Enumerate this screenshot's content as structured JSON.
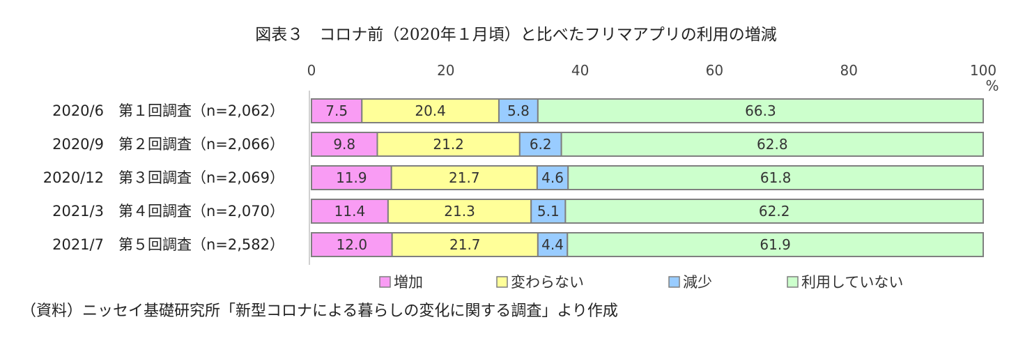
{
  "title": "図表３　コロナ前（2020年１月頃）と比べたフリマアプリの利用の増減",
  "source_note": "（資料）ニッセイ基礎研究所「新型コロナによる暮らしの変化に関する調査」より作成",
  "colors": {
    "increase": "#F99CF4",
    "unchanged": "#FFFF99",
    "decrease": "#99CCFF",
    "not_using": "#CCFFCC",
    "bar_border": "#7f7f7f"
  },
  "chart_data": {
    "type": "bar",
    "orientation": "horizontal",
    "stacked": true,
    "categories": [
      "2020/6　第１回調査（n=2,062）",
      "2020/9　第２回調査（n=2,066）",
      "2020/12　第３回調査（n=2,069）",
      "2021/3　第４回調査（n=2,070）",
      "2021/7　第５回調査（n=2,582）"
    ],
    "series": [
      {
        "name": "増加",
        "values": [
          7.5,
          9.8,
          11.9,
          11.4,
          12.0
        ],
        "labels": [
          "7.5",
          "9.8",
          "11.9",
          "11.4",
          "12.0"
        ],
        "color": "#F99CF4"
      },
      {
        "name": "変わらない",
        "values": [
          20.4,
          21.2,
          21.7,
          21.3,
          21.7
        ],
        "labels": [
          "20.4",
          "21.2",
          "21.7",
          "21.3",
          "21.7"
        ],
        "color": "#FFFF99"
      },
      {
        "name": "減少",
        "values": [
          5.8,
          6.2,
          4.6,
          5.1,
          4.4
        ],
        "labels": [
          "5.8",
          "6.2",
          "4.6",
          "5.1",
          "4.4"
        ],
        "color": "#99CCFF"
      },
      {
        "name": "利用していない",
        "values": [
          66.3,
          62.8,
          61.8,
          62.2,
          61.9
        ],
        "labels": [
          "66.3",
          "62.8",
          "61.8",
          "62.2",
          "61.9"
        ],
        "color": "#CCFFCC"
      }
    ],
    "x_ticks": [
      "0",
      "20",
      "40",
      "60",
      "80",
      "100"
    ],
    "x_unit": "%",
    "xlim": [
      0,
      100
    ],
    "grid": false,
    "legend_position": "bottom"
  }
}
